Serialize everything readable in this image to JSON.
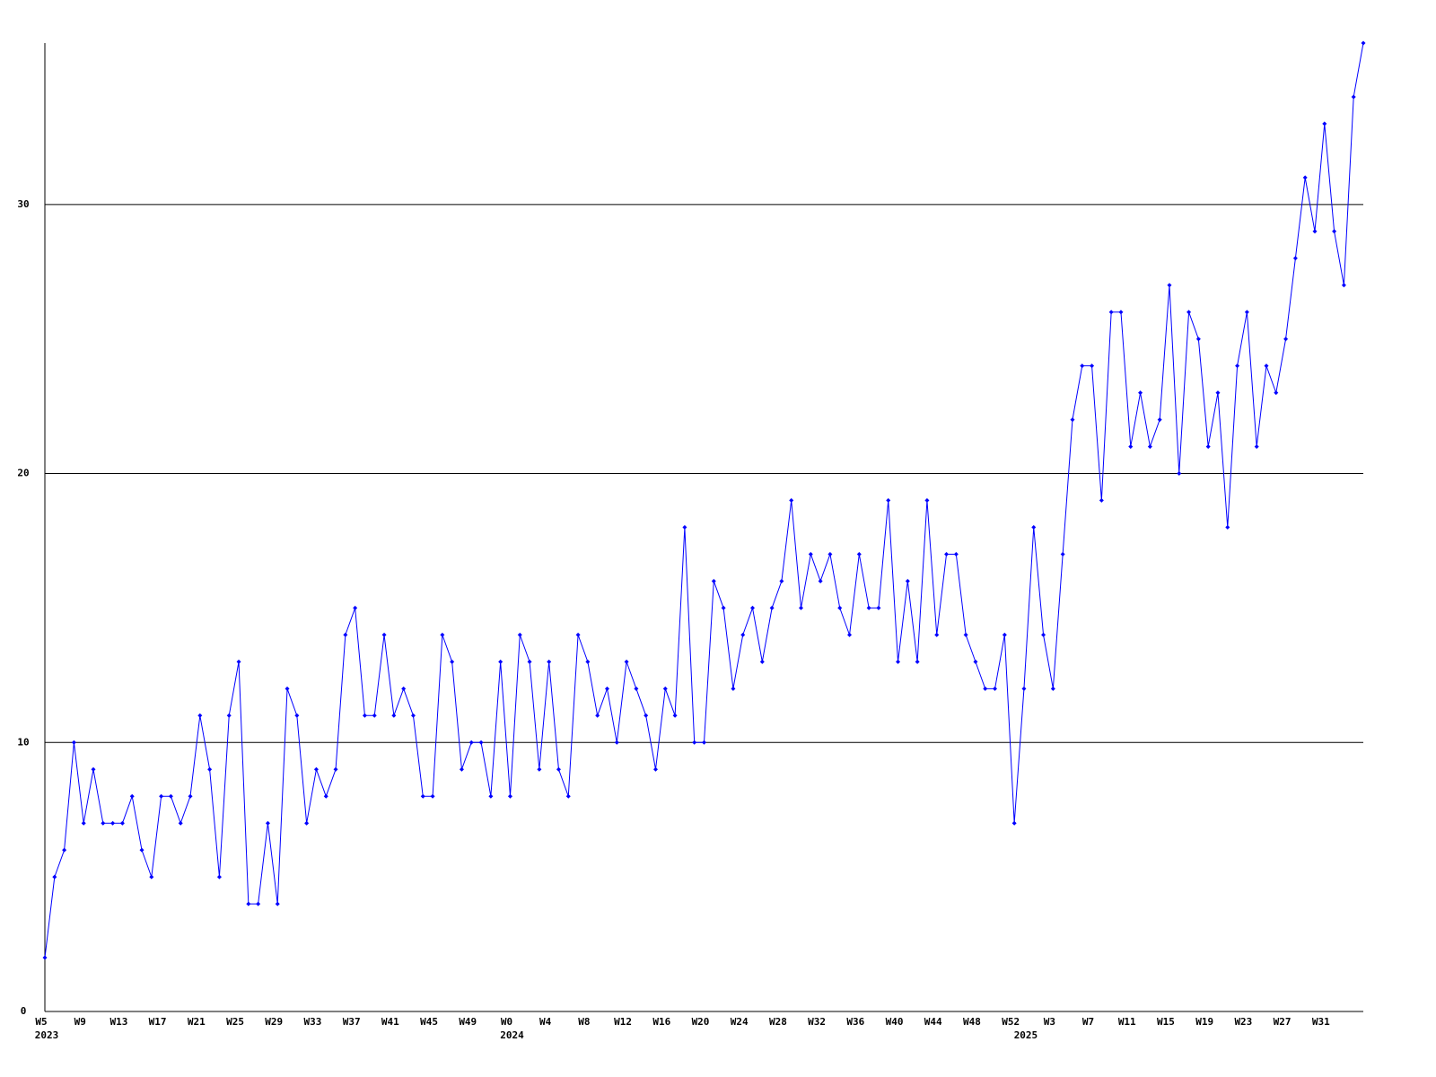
{
  "chart_data": {
    "type": "line",
    "categories": [
      "W5",
      null,
      null,
      null,
      "W9",
      null,
      null,
      null,
      "W13",
      null,
      null,
      null,
      "W17",
      null,
      null,
      null,
      "W21",
      null,
      null,
      null,
      "W25",
      null,
      null,
      null,
      "W29",
      null,
      null,
      null,
      "W33",
      null,
      null,
      null,
      "W37",
      null,
      null,
      null,
      "W41",
      null,
      null,
      null,
      "W45",
      null,
      null,
      null,
      "W49",
      null,
      null,
      null,
      "W0",
      null,
      null,
      null,
      "W4",
      null,
      null,
      null,
      "W8",
      null,
      null,
      null,
      "W12",
      null,
      null,
      null,
      "W16",
      null,
      null,
      null,
      "W20",
      null,
      null,
      null,
      "W24",
      null,
      null,
      null,
      "W28",
      null,
      null,
      null,
      "W32",
      null,
      null,
      null,
      "W36",
      null,
      null,
      null,
      "W40",
      null,
      null,
      null,
      "W44",
      null,
      null,
      null,
      "W48",
      null,
      null,
      null,
      "W52",
      null,
      null,
      null,
      "W3",
      null,
      null,
      null,
      "W7",
      null,
      null,
      null,
      "W11",
      null,
      null,
      null,
      "W15",
      null,
      null,
      null,
      "W19",
      null,
      null,
      null,
      "W23",
      null,
      null,
      null,
      "W27",
      null,
      null,
      null,
      "W31",
      null,
      null,
      null,
      null
    ],
    "year_labels": [
      "2023",
      null,
      null,
      null,
      null,
      null,
      null,
      null,
      null,
      null,
      null,
      null,
      null,
      null,
      null,
      null,
      null,
      null,
      null,
      null,
      null,
      null,
      null,
      null,
      null,
      null,
      null,
      null,
      null,
      null,
      null,
      null,
      null,
      null,
      null,
      null,
      null,
      null,
      null,
      null,
      null,
      null,
      null,
      null,
      null,
      null,
      null,
      null,
      "2024",
      null,
      null,
      null,
      null,
      null,
      null,
      null,
      null,
      null,
      null,
      null,
      null,
      null,
      null,
      null,
      null,
      null,
      null,
      null,
      null,
      null,
      null,
      null,
      null,
      null,
      null,
      null,
      null,
      null,
      null,
      null,
      null,
      null,
      null,
      null,
      null,
      null,
      null,
      null,
      null,
      null,
      null,
      null,
      null,
      null,
      null,
      null,
      null,
      null,
      null,
      null,
      null,
      "2025",
      null,
      null,
      null,
      null,
      null,
      null,
      null,
      null,
      null,
      null,
      null,
      null,
      null,
      null,
      null,
      null,
      null,
      null,
      null,
      null,
      null,
      null,
      null,
      null,
      null,
      null,
      null,
      null,
      null,
      null,
      null,
      null,
      null,
      null,
      null
    ],
    "values": [
      2,
      5,
      6,
      10,
      7,
      9,
      7,
      7,
      7,
      8,
      6,
      5,
      8,
      8,
      7,
      8,
      11,
      9,
      5,
      11,
      13,
      4,
      4,
      7,
      4,
      12,
      11,
      7,
      9,
      8,
      9,
      14,
      15,
      11,
      11,
      14,
      11,
      12,
      11,
      8,
      8,
      14,
      13,
      9,
      10,
      10,
      8,
      13,
      8,
      14,
      13,
      9,
      13,
      9,
      8,
      14,
      13,
      11,
      12,
      10,
      13,
      12,
      11,
      9,
      12,
      11,
      18,
      10,
      10,
      16,
      15,
      12,
      14,
      15,
      13,
      15,
      16,
      19,
      15,
      17,
      16,
      17,
      15,
      14,
      17,
      15,
      15,
      19,
      13,
      16,
      13,
      19,
      14,
      17,
      17,
      14,
      13,
      12,
      12,
      14,
      7,
      12,
      18,
      14,
      12,
      17,
      22,
      24,
      24,
      19,
      26,
      26,
      21,
      23,
      21,
      22,
      27,
      20,
      26,
      25,
      21,
      23,
      18,
      24,
      26,
      21,
      24,
      23,
      25,
      28,
      31,
      29,
      33,
      29,
      27,
      34,
      36
    ],
    "color": "#0000ff",
    "ylim": [
      0,
      36
    ],
    "yticks": [
      0,
      10,
      20,
      30
    ],
    "grid": true
  }
}
